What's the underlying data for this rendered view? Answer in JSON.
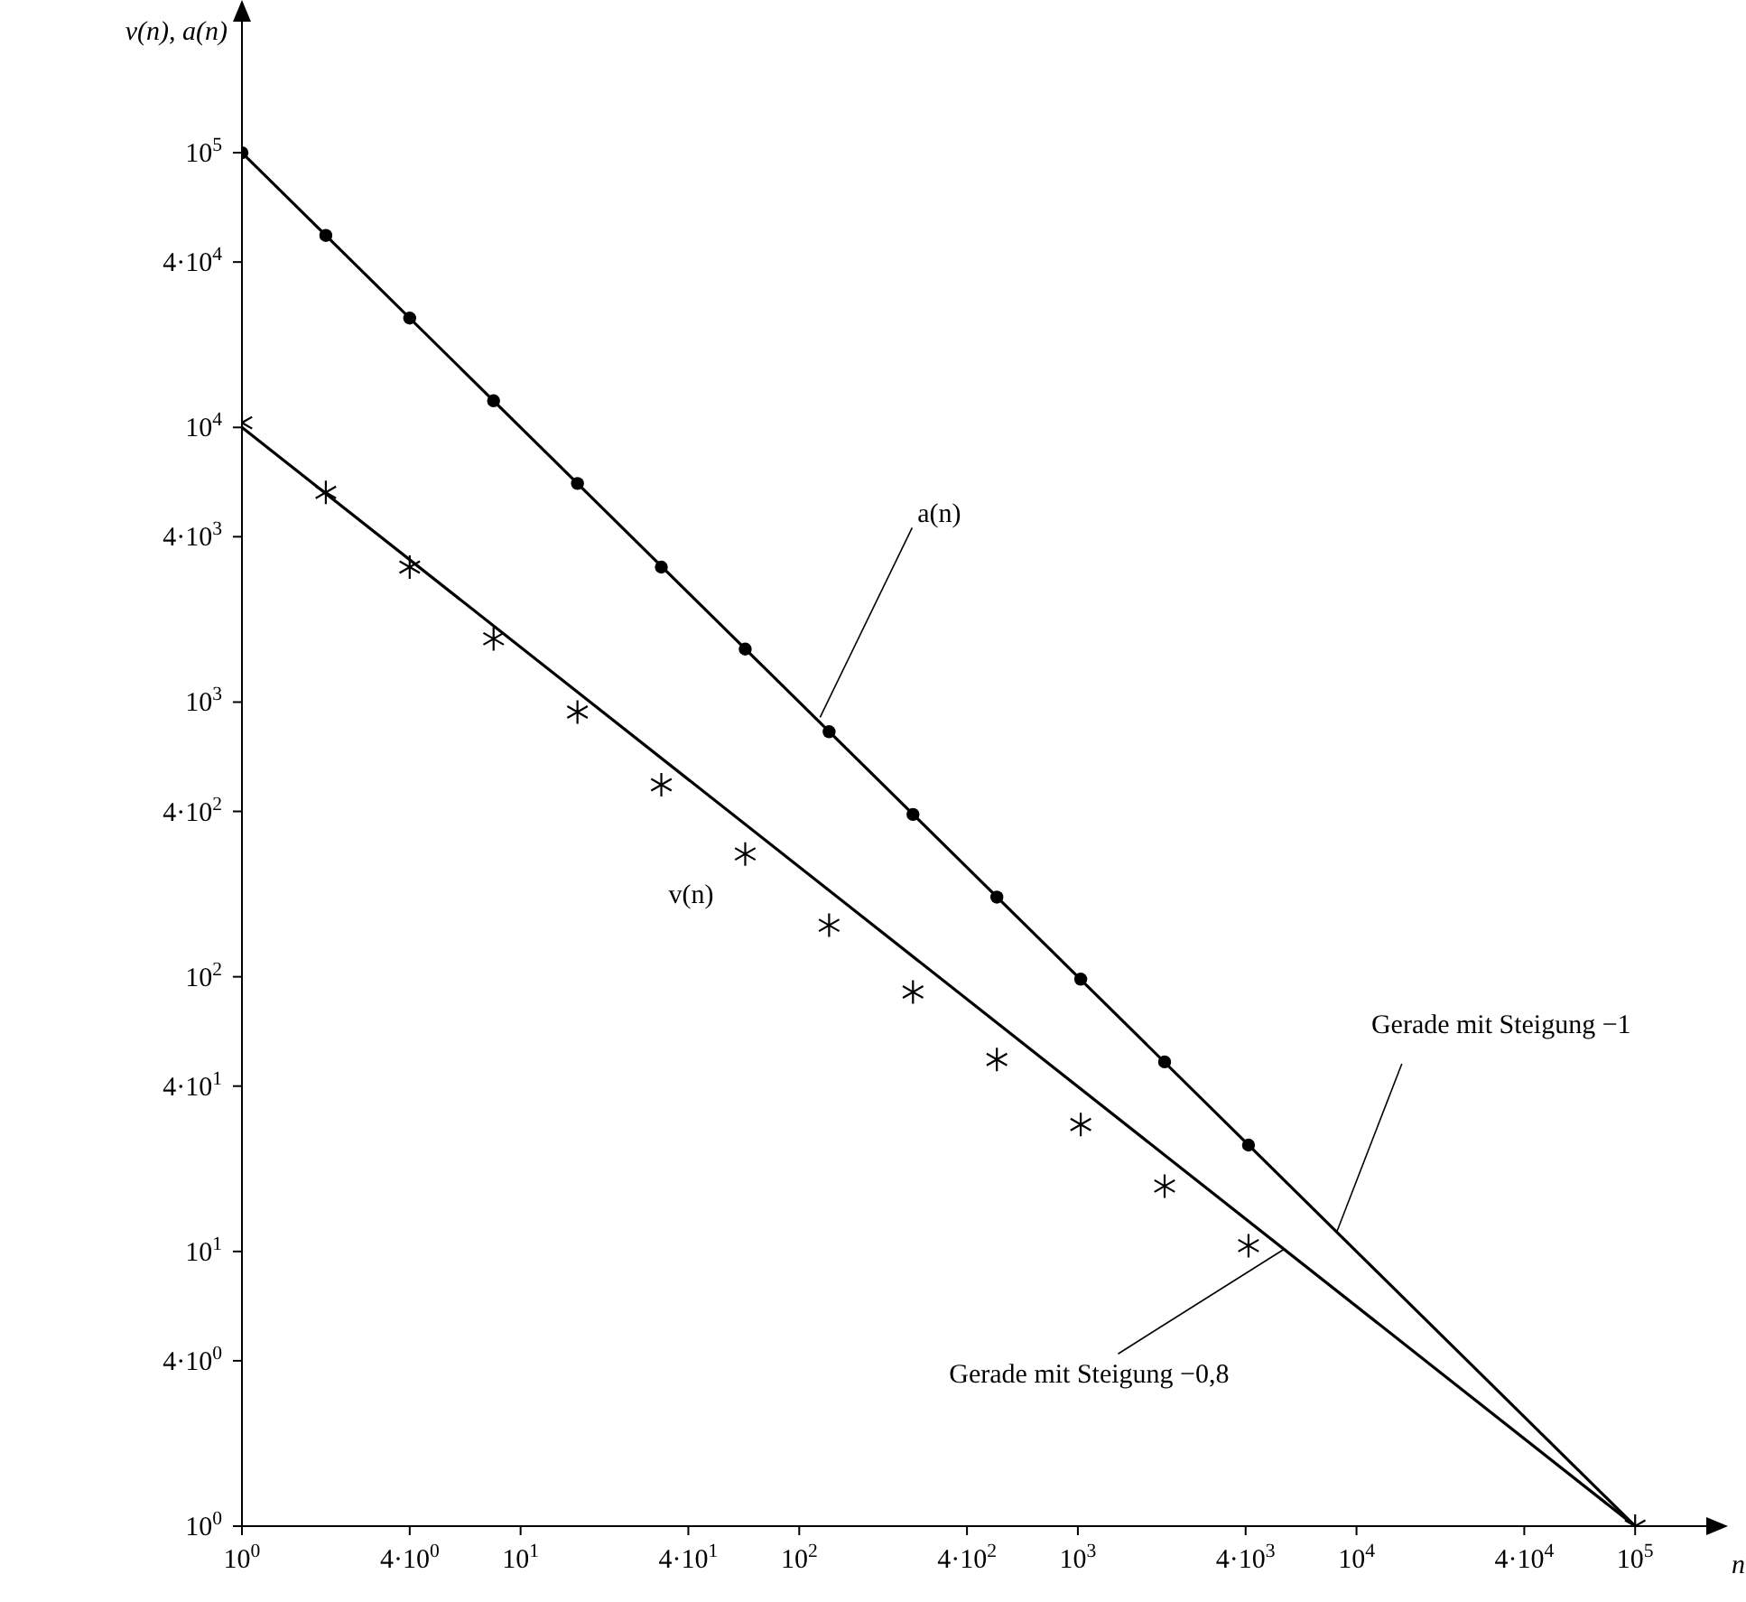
{
  "chart_data": {
    "type": "scatter",
    "log": "xy",
    "xlabel": "n",
    "ylabel": "v(n), a(n)",
    "xlim": [
      1,
      180000
    ],
    "ylim": [
      1,
      300000
    ],
    "xticks": [
      {
        "value": 1,
        "label": "10$^{0}$"
      },
      {
        "value": 4,
        "label": "4·10$^{0}$"
      },
      {
        "value": 10,
        "label": "10$^{1}$"
      },
      {
        "value": 40,
        "label": "4·10$^{1}$"
      },
      {
        "value": 100,
        "label": "10$^{2}$"
      },
      {
        "value": 400,
        "label": "4·10$^{2}$"
      },
      {
        "value": 1000,
        "label": "10$^{3}$"
      },
      {
        "value": 4000,
        "label": "4·10$^{3}$"
      },
      {
        "value": 10000,
        "label": "10$^{4}$"
      },
      {
        "value": 40000,
        "label": "4·10$^{4}$"
      },
      {
        "value": 100000,
        "label": "10$^{5}$"
      }
    ],
    "yticks": [
      {
        "value": 1,
        "label": "10$^{0}$"
      },
      {
        "value": 4,
        "label": "4·10$^{0}$"
      },
      {
        "value": 10,
        "label": "10$^{1}$"
      },
      {
        "value": 40,
        "label": "4·10$^{1}$"
      },
      {
        "value": 100,
        "label": "10$^{2}$"
      },
      {
        "value": 400,
        "label": "4·10$^{2}$"
      },
      {
        "value": 1000,
        "label": "10$^{3}$"
      },
      {
        "value": 4000,
        "label": "4·10$^{3}$"
      },
      {
        "value": 10000,
        "label": "10$^{4}$"
      },
      {
        "value": 40000,
        "label": "4·10$^{4}$"
      },
      {
        "value": 100000,
        "label": "10$^{5}$"
      }
    ],
    "grid": false,
    "legend": false,
    "series": [
      {
        "type": "line",
        "x": [
          1,
          100000
        ],
        "values": [
          100000,
          1
        ],
        "color": "#000000"
      },
      {
        "type": "line",
        "x": [
          1,
          100000
        ],
        "values": [
          10000,
          1
        ],
        "color": "#000000"
      },
      {
        "name": "a(n)",
        "x": [
          1,
          2,
          4,
          8,
          16,
          32,
          64,
          128,
          256,
          512,
          1024,
          2048,
          4096
        ],
        "values": [
          100000,
          50000,
          25000,
          12500,
          6250,
          3100,
          1560,
          780,
          390,
          195,
          98,
          49,
          24.4
        ],
        "color": "#000000",
        "marker": "circle"
      },
      {
        "name": "v(n)",
        "x": [
          1,
          2,
          4,
          8,
          16,
          32,
          64,
          128,
          256,
          512,
          1024,
          2048,
          4096,
          100000
        ],
        "values": [
          10400,
          5800,
          3100,
          1700,
          920,
          500,
          280,
          154,
          88,
          50,
          29,
          17.3,
          10.5,
          1
        ],
        "color": "#000000",
        "marker": "cross"
      }
    ],
    "annotations": [
      {
        "text": "Gerade mit Steigung −1",
        "x": 8500,
        "y": 11.8
      },
      {
        "text": "Gerade mit Steigung −0,8",
        "x": 5500,
        "y": 10.2
      }
    ]
  }
}
